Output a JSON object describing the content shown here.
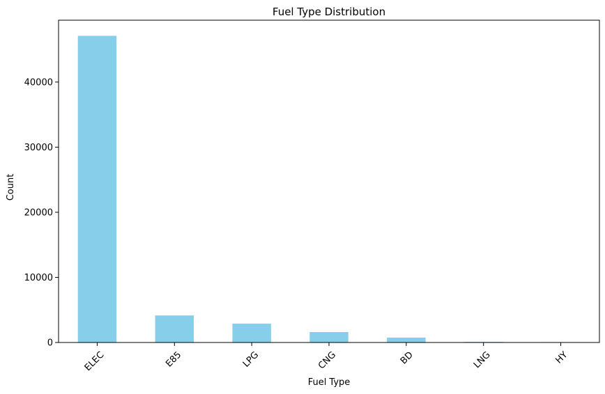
{
  "chart_data": {
    "type": "bar",
    "title": "Fuel Type Distribution",
    "xlabel": "Fuel Type",
    "ylabel": "Count",
    "categories": [
      "ELEC",
      "E85",
      "LPG",
      "CNG",
      "BD",
      "LNG",
      "HY"
    ],
    "values": [
      47100,
      4150,
      2900,
      1600,
      750,
      90,
      60
    ],
    "ylim": [
      0,
      49500
    ],
    "yticks": [
      0,
      10000,
      20000,
      30000,
      40000
    ],
    "ytick_labels": [
      "0",
      "10000",
      "20000",
      "30000",
      "40000"
    ],
    "bar_color": "#87ceeb",
    "grid": false,
    "legend": "none",
    "xtick_rotation": 45
  }
}
